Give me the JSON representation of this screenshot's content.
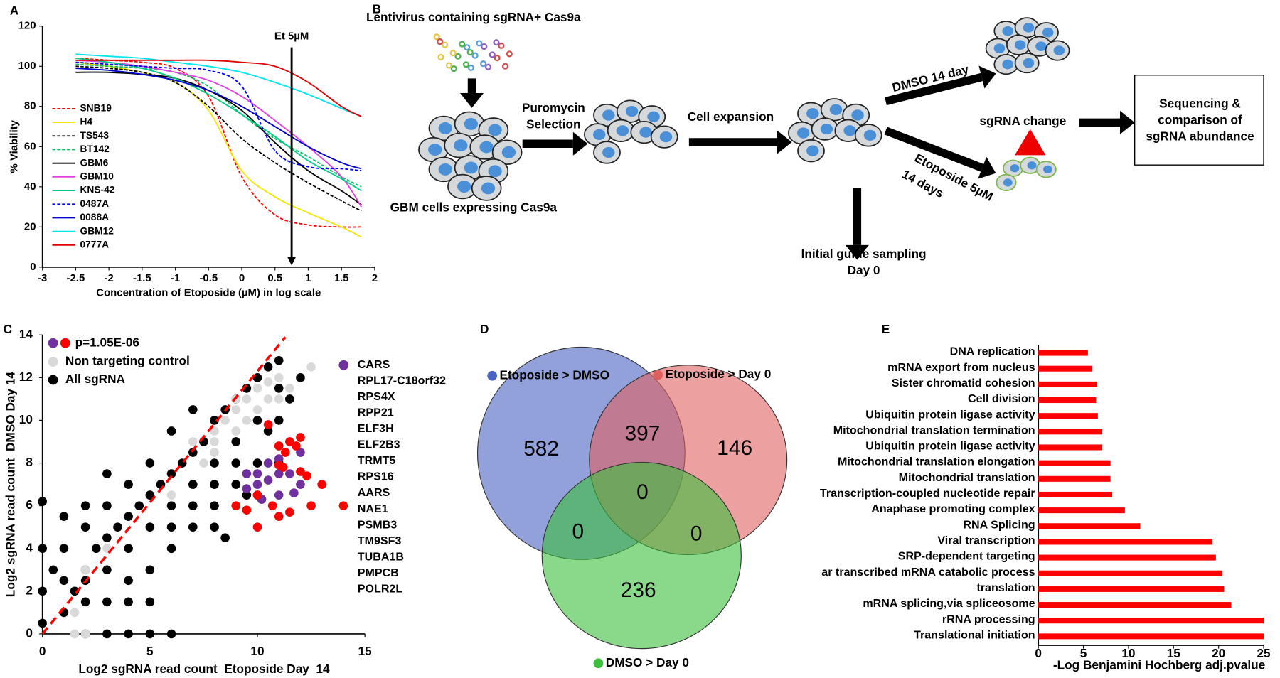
{
  "chart_data": [
    {
      "type": "line",
      "panel": "A",
      "x_label": "Concentration of Etoposide (µM) in log scale",
      "y_label": "% Viability",
      "xlim": [
        -3,
        2
      ],
      "xticks": [
        -3,
        -2.5,
        -2,
        -1.5,
        -1,
        -0.5,
        0,
        0.5,
        1,
        1.5,
        2
      ],
      "ylim": [
        0,
        120
      ],
      "yticks": [
        0,
        20,
        40,
        60,
        80,
        100,
        120
      ],
      "x": [
        -2.5,
        -2,
        -1.5,
        -1,
        -0.5,
        0,
        0.5,
        1,
        1.5,
        1.8
      ],
      "series": [
        {
          "name": "SNB19",
          "color": "#ff0000",
          "dash": true,
          "values": [
            104,
            103,
            102,
            99,
            85,
            45,
            26,
            21,
            20,
            20
          ]
        },
        {
          "name": "H4",
          "color": "#f2e600",
          "dash": false,
          "values": [
            102,
            100,
            97,
            92,
            78,
            48,
            35,
            27,
            20,
            15
          ]
        },
        {
          "name": "TS543",
          "color": "#000000",
          "dash": true,
          "values": [
            100,
            99,
            97,
            92,
            80,
            64,
            52,
            42,
            33,
            28
          ]
        },
        {
          "name": "BT142",
          "color": "#00c060",
          "dash": true,
          "values": [
            101,
            100,
            99,
            97,
            90,
            76,
            64,
            55,
            45,
            40
          ]
        },
        {
          "name": "GBM6",
          "color": "#000000",
          "dash": false,
          "values": [
            97,
            97,
            96,
            94,
            88,
            78,
            62,
            48,
            38,
            31
          ]
        },
        {
          "name": "GBM10",
          "color": "#e040e0",
          "dash": false,
          "values": [
            103,
            102,
            100,
            97,
            93,
            85,
            73,
            60,
            45,
            30
          ]
        },
        {
          "name": "KNS-42",
          "color": "#00cc88",
          "dash": false,
          "values": [
            104,
            102,
            99,
            94,
            86,
            76,
            65,
            53,
            44,
            38
          ]
        },
        {
          "name": "0487A",
          "color": "#0000ff",
          "dash": true,
          "values": [
            102,
            101,
            100,
            99,
            98,
            90,
            58,
            50,
            49,
            48
          ]
        },
        {
          "name": "0088A",
          "color": "#0000cc",
          "dash": false,
          "values": [
            99,
            98,
            96,
            93,
            88,
            80,
            70,
            60,
            52,
            49
          ]
        },
        {
          "name": "GBM12",
          "color": "#00e5ee",
          "dash": false,
          "values": [
            106,
            105,
            104,
            102,
            100,
            97,
            92,
            86,
            79,
            75
          ]
        },
        {
          "name": "0777A",
          "color": "#e00000",
          "dash": false,
          "values": [
            103,
            103,
            103,
            103,
            103,
            102,
            100,
            92,
            80,
            75
          ]
        }
      ],
      "annotations": [
        {
          "text": "Et 5µM",
          "x": 0.75
        }
      ]
    },
    {
      "type": "scatter",
      "panel": "C",
      "x_label": "Log2 sgRNA read count  Etoposide Day  14",
      "y_label": "Log2 sgRNA read count  DMSO Day 14",
      "xlim": [
        0,
        15
      ],
      "xticks": [
        0,
        5,
        10,
        15
      ],
      "ylim": [
        0,
        14
      ],
      "yticks": [
        0,
        2,
        4,
        6,
        8,
        10,
        12,
        14
      ],
      "p_value": "p=1.05E-06",
      "reference_line": {
        "color": "#ff0000",
        "x": [
          0,
          11.3
        ],
        "y": [
          0,
          13.9
        ]
      },
      "series": [
        {
          "name": "All sgRNA",
          "color": "#000000",
          "x": [
            1,
            1.5,
            2,
            2,
            2.5,
            3,
            3,
            3.5,
            4,
            4,
            4.5,
            5,
            5,
            5.5,
            6,
            6,
            6.5,
            7,
            7,
            7.5,
            8,
            8,
            8.5,
            9,
            9,
            9.5,
            10,
            10,
            10.5,
            11,
            11,
            6,
            7,
            8,
            9,
            5,
            4,
            8,
            9,
            10,
            10.5,
            11,
            11.5,
            3,
            4,
            5,
            6,
            7,
            2,
            1,
            0,
            0,
            0,
            0,
            1,
            2,
            3,
            4,
            5,
            6,
            2,
            3,
            4,
            5,
            1,
            0.5,
            2,
            3,
            6,
            7,
            8,
            8.5,
            9.5,
            10,
            11,
            12
          ],
          "y": [
            1,
            2,
            2.5,
            3,
            4,
            3,
            4.5,
            5,
            4,
            5.5,
            6,
            5,
            6.5,
            7,
            6,
            7.5,
            8,
            7,
            8.5,
            9,
            8,
            10,
            10.5,
            9,
            11,
            11.5,
            10,
            12,
            12.5,
            11.5,
            12.8,
            4,
            5,
            6,
            7,
            3,
            2.5,
            7,
            8,
            8,
            9.5,
            10,
            11,
            6,
            7,
            8,
            9.5,
            10.5,
            5,
            4,
            6.2,
            4,
            2,
            0.5,
            5.5,
            0,
            0,
            0,
            0,
            0,
            1.5,
            1.5,
            1.5,
            1.5,
            2.5,
            3,
            6,
            7.5,
            5,
            6,
            5,
            4.5,
            6.5,
            6.5,
            8,
            12
          ]
        },
        {
          "name": "Non targeting control",
          "color": "#d9d9d9",
          "x": [
            8,
            8.5,
            9,
            9.5,
            10,
            10.5,
            11,
            9,
            10,
            8,
            7,
            9.5,
            10.5,
            11,
            11.5,
            12.5,
            7.5,
            3,
            2,
            6,
            1.5,
            2,
            1.5,
            8,
            9
          ],
          "y": [
            9.5,
            10,
            10.5,
            11,
            11.5,
            11.8,
            12,
            9.5,
            10.5,
            8.5,
            9,
            10,
            11,
            11,
            11.5,
            12.5,
            8,
            4,
            3,
            6.5,
            0,
            0,
            1,
            9,
            11
          ]
        },
        {
          "name": null,
          "color": "#7030a0",
          "x": [
            9.5,
            10,
            10,
            10.5,
            10.5,
            11,
            11,
            11.5,
            11,
            12,
            9.5,
            10.2,
            12,
            11.7
          ],
          "y": [
            6.8,
            7.5,
            7,
            7.2,
            8,
            7.5,
            6.5,
            7.5,
            8.2,
            7,
            7.5,
            6.3,
            8.5,
            6.6
          ]
        },
        {
          "name": null,
          "color": "#ff0000",
          "x": [
            10.5,
            11,
            11.3,
            11.5,
            12,
            11,
            11.2,
            12,
            12.3,
            10,
            10.7,
            11,
            11.5,
            9.5,
            9,
            10,
            13,
            14,
            12.5,
            11.8
          ],
          "y": [
            9.8,
            8.8,
            8.5,
            9,
            9.2,
            7.9,
            7.8,
            7.6,
            7.4,
            6.5,
            6,
            5.5,
            5.7,
            5.8,
            6,
            5,
            7,
            6,
            6,
            8.8
          ]
        }
      ],
      "gene_labels": [
        {
          "text": "CARS",
          "color": "#7030a0"
        },
        {
          "text": "RPL17-C18orf32",
          "color": "#7030a0"
        },
        {
          "text": "RPS4X",
          "color": "#7030a0"
        },
        {
          "text": "RPP21",
          "color": "#7030a0"
        },
        {
          "text": "ELF3H",
          "color": "#7030a0"
        },
        {
          "text": "ELF2B3",
          "color": "#7030a0"
        },
        {
          "text": "TRMT5",
          "color": "#7030a0"
        },
        {
          "text": "RPS16",
          "color": "#7030a0"
        },
        {
          "text": "AARS",
          "color": "#7030a0"
        },
        {
          "text": "NAE1",
          "color": "#ff0000"
        },
        {
          "text": "PSMB3",
          "color": "#ff0000"
        },
        {
          "text": "TM9SF3",
          "color": "#ff0000"
        },
        {
          "text": "TUBA1B",
          "color": "#ff0000"
        },
        {
          "text": "PMPCB",
          "color": "#ff0000"
        },
        {
          "text": "POLR2L",
          "color": "#ff0000"
        }
      ]
    },
    {
      "type": "venn",
      "panel": "D",
      "sets": [
        {
          "name": "Etoposide > DMSO",
          "color": "#4a63c0"
        },
        {
          "name": "Etoposide > Day 0",
          "color": "#e06060"
        },
        {
          "name": "DMSO > Day 0",
          "color": "#3cc03c"
        }
      ],
      "regions": [
        {
          "sets": [
            0
          ],
          "value": 582
        },
        {
          "sets": [
            0,
            1
          ],
          "value": 397
        },
        {
          "sets": [
            1
          ],
          "value": 146
        },
        {
          "sets": [
            0,
            1,
            2
          ],
          "value": 0
        },
        {
          "sets": [
            0,
            2
          ],
          "value": 0
        },
        {
          "sets": [
            1,
            2
          ],
          "value": 0
        },
        {
          "sets": [
            2
          ],
          "value": 236
        }
      ]
    },
    {
      "type": "hbar",
      "panel": "E",
      "x_label": "-Log Benjamini Hochberg adj.pvalue",
      "color": "#ff0000",
      "xlim": [
        0,
        25
      ],
      "xticks": [
        0,
        5,
        10,
        15,
        20,
        25
      ],
      "categories": [
        "DNA replication",
        "mRNA export from nucleus",
        "Sister chromatid cohesion",
        "Cell division",
        "Ubiquitin protein ligase activity",
        "Mitochondrial translation termination",
        "Ubiquitin protein ligase activity",
        "Mitochondrial translation elongation",
        "Mitochondrial translation",
        "Transcription-coupled nucleotide repair",
        "Anaphase promoting complex",
        "RNA Splicing",
        "Viral transcription",
        "SRP-dependent targeting",
        "ar transcribed mRNA catabolic process",
        "translation",
        "mRNA splicing,via spliceosome",
        "rRNA processing",
        "Translational initiation"
      ],
      "values": [
        5.5,
        6.0,
        6.5,
        6.4,
        6.6,
        7.1,
        7.1,
        8.0,
        8.0,
        8.2,
        9.6,
        11.3,
        19.3,
        19.7,
        20.4,
        20.6,
        21.4,
        25.0,
        25.0
      ]
    }
  ],
  "diagram": {
    "panel": "B",
    "virus": "Lentivirus containing sgRNA+ Cas9a",
    "selection": [
      "Puromycin",
      "Selection"
    ],
    "expansion": "Cell expansion",
    "cells": "GBM cells expressing Cas9a",
    "dmso": "DMSO 14 day",
    "etoposide": [
      "Etoposide 5µM",
      "14 days"
    ],
    "change": "sgRNA change",
    "sequencing": [
      "Sequencing &",
      "comparison of",
      "sgRNA abundance"
    ],
    "sampling": [
      "Initial guide sampling",
      "Day 0"
    ]
  }
}
